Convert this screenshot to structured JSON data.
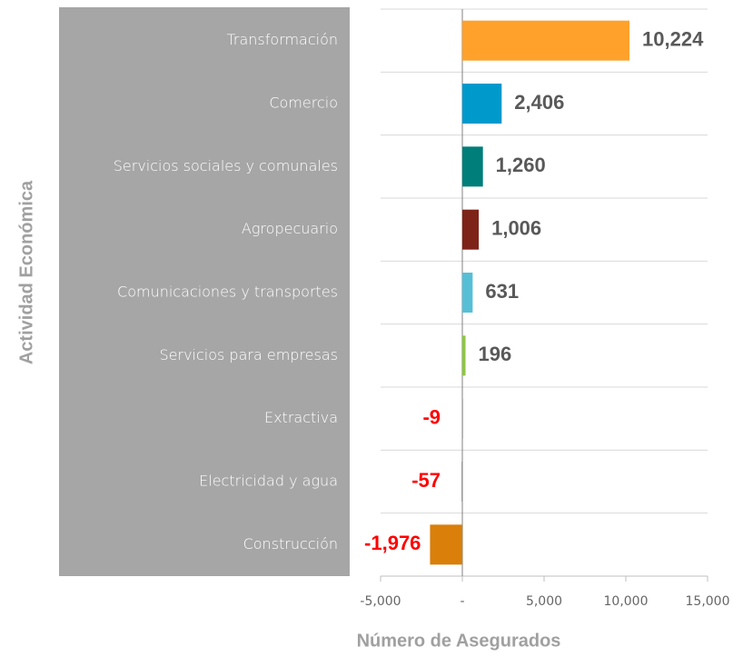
{
  "chart_data": {
    "type": "barh",
    "xlabel": "Número de Asegurados",
    "ylabel": "Actividad Económica",
    "categories": [
      "Transformación",
      "Comercio",
      "Servicios sociales y comunales",
      "Agropecuario",
      "Comunicaciones y transportes",
      "Servicios para empresas",
      "Extractiva",
      "Electricidad y agua",
      "Construcción"
    ],
    "values": [
      10224,
      2406,
      1260,
      1006,
      631,
      196,
      -9,
      -57,
      -1976
    ],
    "value_labels": [
      "10,224",
      "2,406",
      "1,260",
      "1,006",
      "631",
      "196",
      "-9",
      "-57",
      "-1,976"
    ],
    "colors": [
      "#ffa12b",
      "#0099cc",
      "#007e7a",
      "#7e2318",
      "#56bfd6",
      "#8dc63f",
      "#9e9e9e",
      "#9e9e9e",
      "#d97f0a"
    ],
    "xlim": [
      -5000,
      15000
    ],
    "xticks": [
      {
        "value": -5000,
        "label": "-5,000"
      },
      {
        "value": 0,
        "label": "-"
      },
      {
        "value": 5000,
        "label": "5,000"
      },
      {
        "value": 10000,
        "label": "10,000"
      },
      {
        "value": 15000,
        "label": "15,000"
      }
    ],
    "grid": true
  }
}
